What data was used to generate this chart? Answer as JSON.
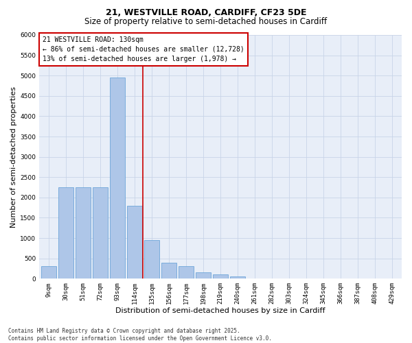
{
  "title_line1": "21, WESTVILLE ROAD, CARDIFF, CF23 5DE",
  "title_line2": "Size of property relative to semi-detached houses in Cardiff",
  "xlabel": "Distribution of semi-detached houses by size in Cardiff",
  "ylabel": "Number of semi-detached properties",
  "footer": "Contains HM Land Registry data © Crown copyright and database right 2025.\nContains public sector information licensed under the Open Government Licence v3.0.",
  "annotation_title": "21 WESTVILLE ROAD: 130sqm",
  "annotation_line1": "← 86% of semi-detached houses are smaller (12,728)",
  "annotation_line2": "13% of semi-detached houses are larger (1,978) →",
  "bar_categories": [
    "9sqm",
    "30sqm",
    "51sqm",
    "72sqm",
    "93sqm",
    "114sqm",
    "135sqm",
    "156sqm",
    "177sqm",
    "198sqm",
    "219sqm",
    "240sqm",
    "261sqm",
    "282sqm",
    "303sqm",
    "324sqm",
    "345sqm",
    "366sqm",
    "387sqm",
    "408sqm",
    "429sqm"
  ],
  "bar_values": [
    300,
    2250,
    2250,
    2250,
    4950,
    1800,
    950,
    400,
    300,
    150,
    110,
    55,
    10,
    5,
    2,
    0,
    0,
    0,
    0,
    0,
    0
  ],
  "bar_color": "#aec6e8",
  "bar_edge_color": "#5b9bd5",
  "vline_color": "#cc0000",
  "vline_x": 5.5,
  "ylim": [
    0,
    6000
  ],
  "yticks": [
    0,
    500,
    1000,
    1500,
    2000,
    2500,
    3000,
    3500,
    4000,
    4500,
    5000,
    5500,
    6000
  ],
  "grid_color": "#c8d4e8",
  "background_color": "#e8eef8",
  "box_color": "#cc0000",
  "title_fontsize": 9,
  "subtitle_fontsize": 8.5,
  "axis_label_fontsize": 8,
  "tick_fontsize": 6.5,
  "annotation_fontsize": 7,
  "footer_fontsize": 5.5
}
